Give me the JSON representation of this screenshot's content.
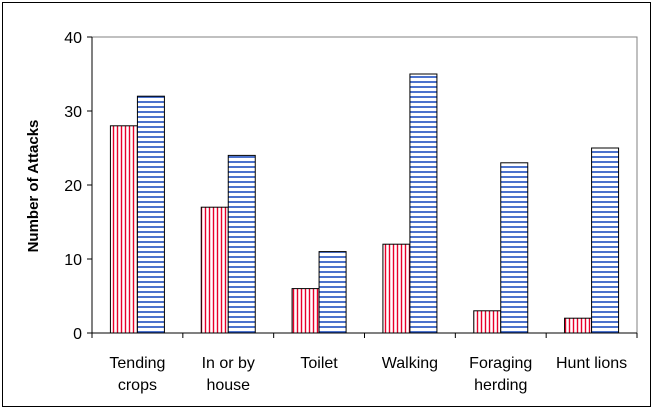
{
  "chart_data": {
    "type": "bar",
    "title": "",
    "xlabel": "",
    "ylabel": "Number of Attacks",
    "ylim": [
      0,
      40
    ],
    "yticks": [
      0,
      10,
      20,
      30,
      40
    ],
    "grid": false,
    "legend": "none",
    "categories": [
      [
        "Tending",
        "crops"
      ],
      [
        "In or by",
        "house"
      ],
      [
        "Toilet"
      ],
      [
        "Walking"
      ],
      [
        "Foraging",
        "herding"
      ],
      [
        "Hunt lions"
      ]
    ],
    "series": [
      {
        "values": [
          28,
          17,
          6,
          12,
          3,
          2
        ],
        "color": "#e8002a",
        "pattern": "vertical-stripes"
      },
      {
        "values": [
          32,
          24,
          11,
          35,
          23,
          25
        ],
        "color": "#1f4fbf",
        "pattern": "horizontal-stripes"
      }
    ]
  }
}
